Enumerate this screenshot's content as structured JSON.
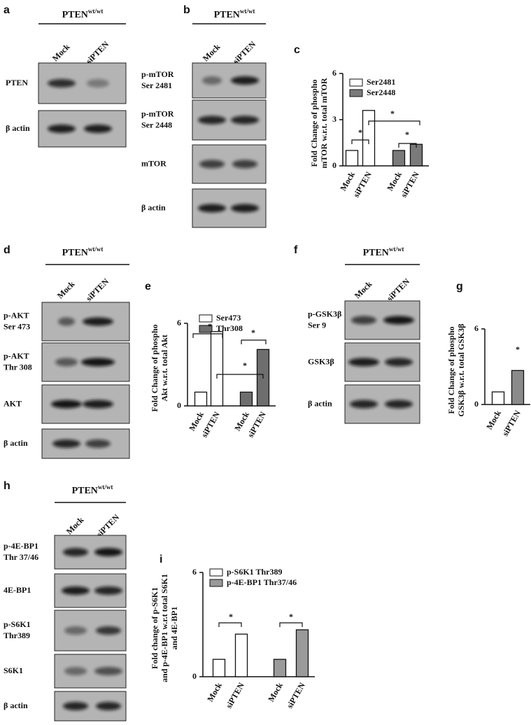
{
  "blots": [
    {
      "panel_label": "a",
      "header": "PTEN",
      "header_sup": "wt/wt",
      "lanes": [
        "Mock",
        "siPTEN"
      ],
      "rows": [
        [
          "PTEN"
        ],
        [
          "β actin"
        ]
      ]
    },
    {
      "panel_label": "b",
      "header": "PTEN",
      "header_sup": "wt/wt",
      "lanes": [
        "Mock",
        "siPTEN"
      ],
      "rows": [
        [
          "p-mTOR",
          "Ser 2481"
        ],
        [
          "p-mTOR",
          "Ser 2448"
        ],
        [
          "mTOR"
        ],
        [
          "β actin"
        ]
      ]
    },
    {
      "panel_label": "d",
      "header": "PTEN",
      "header_sup": "wt/wt",
      "lanes": [
        "Mock",
        "siPTEN"
      ],
      "rows": [
        [
          "p-AKT",
          "Ser 473"
        ],
        [
          "p-AKT",
          "Thr 308"
        ],
        [
          "AKT"
        ],
        [
          "β actin"
        ]
      ]
    },
    {
      "panel_label": "f",
      "header": "PTEN",
      "header_sup": "wt/wt",
      "lanes": [
        "Mock",
        "siPTEN"
      ],
      "rows": [
        [
          "p-GSK3β",
          "Ser 9"
        ],
        [
          "GSK3β"
        ],
        [
          "β actin"
        ]
      ]
    },
    {
      "panel_label": "h",
      "header": "PTEN",
      "header_sup": "wt/wt",
      "lanes": [
        "Mock",
        "siPTEN"
      ],
      "rows": [
        [
          "p-4E-BP1",
          "Thr 37/46"
        ],
        [
          "4E-BP1"
        ],
        [
          "p-S6K1",
          "Thr389"
        ],
        [
          "S6K1"
        ],
        [
          "β actin"
        ]
      ]
    }
  ],
  "chart_data": [
    {
      "type": "bar",
      "panel_label": "c",
      "y_label": [
        "Fold Change of phospho",
        "mTOR w.r.t. total  mTOR"
      ],
      "categories": [
        "Mock",
        "siPTEN"
      ],
      "series": [
        {
          "name": "Ser2481",
          "color": "#ffffff",
          "values": [
            1,
            3.6
          ]
        },
        {
          "name": "Ser2448",
          "color": "#7a7a7a",
          "values": [
            1,
            1.4
          ]
        }
      ],
      "ylim": [
        0,
        6
      ],
      "yticks": [
        0,
        3,
        6
      ],
      "significance": [
        "*",
        "*",
        "*"
      ]
    },
    {
      "type": "bar",
      "panel_label": "e",
      "y_label": [
        "Fold Change of phospho",
        "Akt w.r.t. total  Akt"
      ],
      "categories": [
        "Mock",
        "siPTEN"
      ],
      "series": [
        {
          "name": "Ser473",
          "color": "#ffffff",
          "values": [
            1,
            5.4
          ]
        },
        {
          "name": "Thr308",
          "color": "#6e6e6e",
          "values": [
            1,
            4.1
          ]
        }
      ],
      "ylim": [
        0,
        6
      ],
      "yticks": [
        0,
        6
      ],
      "significance": [
        "*",
        "*",
        "*"
      ]
    },
    {
      "type": "bar",
      "panel_label": "g",
      "y_label": [
        "Fold Change of phospho",
        "GSK3β w.r.t. total  GSK3β"
      ],
      "categories": [
        "Mock",
        "siPTEN"
      ],
      "values": [
        1,
        2.7
      ],
      "colors": [
        "#ffffff",
        "#8a8a8a"
      ],
      "ylim": [
        0,
        6
      ],
      "yticks": [
        0,
        6
      ],
      "significance": [
        "*"
      ]
    },
    {
      "type": "bar",
      "panel_label": "i",
      "y_label": [
        "Fold change of p-S6K1",
        "and  p-4E-BP1 w.r.t total  S6K1",
        "and 4E-BP1"
      ],
      "categories": [
        "Mock",
        "siPTEN"
      ],
      "series": [
        {
          "name": "p-S6K1 Thr389",
          "color": "#ffffff",
          "values": [
            1,
            2.45
          ]
        },
        {
          "name": "p-4E-BP1 Thr37/46",
          "color": "#9a9a9a",
          "values": [
            1,
            2.7
          ]
        }
      ],
      "ylim": [
        0,
        6
      ],
      "yticks": [
        0,
        6
      ],
      "significance": [
        "*",
        "*"
      ]
    }
  ]
}
